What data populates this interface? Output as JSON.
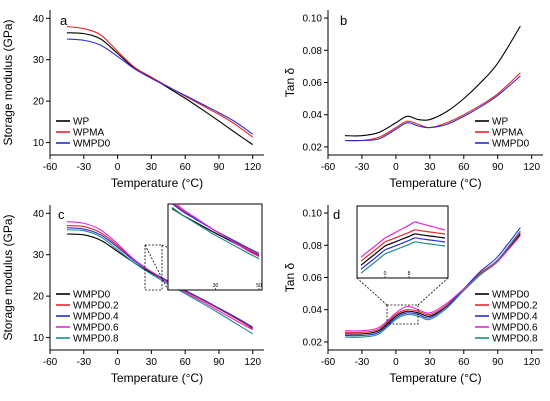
{
  "chart_data": [
    {
      "panel": "a",
      "type": "line",
      "xlabel_main": "Temperature (",
      "xlabel_unit": "°C",
      "xlabel_close": ")",
      "ylabel": "Storage modulus (GPa)",
      "xlim": [
        -60,
        130
      ],
      "ylim": [
        7,
        42
      ],
      "xticks": [
        -60,
        -30,
        0,
        30,
        60,
        90,
        120
      ],
      "yticks": [
        10,
        20,
        30,
        40
      ],
      "legend_position": "bottom-left",
      "series": [
        {
          "name": "WP",
          "color": "#000000",
          "x": [
            -45,
            -30,
            -15,
            0,
            15,
            30,
            45,
            60,
            75,
            90,
            105,
            120
          ],
          "y": [
            36.5,
            36.3,
            35.0,
            31.5,
            28.0,
            25.7,
            23.2,
            20.7,
            18.0,
            15.2,
            12.3,
            9.5
          ]
        },
        {
          "name": "WPMA",
          "color": "#e8262b",
          "x": [
            -45,
            -30,
            -15,
            0,
            15,
            30,
            45,
            60,
            75,
            90,
            105,
            120
          ],
          "y": [
            38.0,
            37.5,
            36.0,
            32.0,
            28.2,
            25.8,
            23.5,
            21.2,
            19.0,
            16.8,
            14.3,
            11.3
          ]
        },
        {
          "name": "WMPD0",
          "color": "#2c2cd6",
          "x": [
            -45,
            -30,
            -15,
            0,
            15,
            30,
            45,
            60,
            75,
            90,
            105,
            120
          ],
          "y": [
            35.0,
            34.7,
            33.5,
            30.8,
            27.8,
            25.5,
            23.4,
            21.4,
            19.3,
            17.2,
            14.9,
            12.0
          ]
        }
      ]
    },
    {
      "panel": "b",
      "type": "line",
      "xlabel_main": "Temperature (",
      "xlabel_unit": "°C",
      "xlabel_close": ")",
      "ylabel": "Tan δ",
      "xlim": [
        -60,
        130
      ],
      "ylim": [
        0.015,
        0.105
      ],
      "xticks": [
        -60,
        -30,
        0,
        30,
        60,
        90,
        120
      ],
      "yticks": [
        0.02,
        0.04,
        0.06,
        0.08,
        0.1
      ],
      "ytick_labels": [
        "0.02",
        "0.04",
        "0.06",
        "0.08",
        "0.10"
      ],
      "legend_position": "bottom-right",
      "series": [
        {
          "name": "WP",
          "color": "#000000",
          "x": [
            -45,
            -30,
            -15,
            0,
            10,
            20,
            30,
            45,
            60,
            75,
            90,
            110
          ],
          "y": [
            0.027,
            0.027,
            0.029,
            0.035,
            0.039,
            0.037,
            0.037,
            0.042,
            0.05,
            0.06,
            0.072,
            0.095
          ]
        },
        {
          "name": "WPMA",
          "color": "#e8262b",
          "x": [
            -45,
            -30,
            -15,
            0,
            10,
            20,
            30,
            45,
            60,
            75,
            90,
            110
          ],
          "y": [
            0.024,
            0.024,
            0.026,
            0.032,
            0.036,
            0.034,
            0.032,
            0.035,
            0.04,
            0.046,
            0.053,
            0.066
          ]
        },
        {
          "name": "WMPD0",
          "color": "#2c2cd6",
          "x": [
            -45,
            -30,
            -15,
            0,
            10,
            20,
            30,
            45,
            60,
            75,
            90,
            110
          ],
          "y": [
            0.024,
            0.024,
            0.025,
            0.031,
            0.035,
            0.033,
            0.032,
            0.034,
            0.039,
            0.045,
            0.052,
            0.064
          ]
        }
      ]
    },
    {
      "panel": "c",
      "type": "line",
      "xlabel_main": "Temperature (",
      "xlabel_unit": "°C",
      "xlabel_close": ")",
      "ylabel": "Storage modulus (GPa)",
      "xlim": [
        -60,
        130
      ],
      "ylim": [
        7,
        42
      ],
      "xticks": [
        -60,
        -30,
        0,
        30,
        60,
        90,
        120
      ],
      "yticks": [
        10,
        20,
        30,
        40
      ],
      "legend_position": "bottom-left",
      "inset": {
        "xlim": [
          10,
          50
        ],
        "xticks": [
          30,
          50
        ],
        "ylim": [
          19,
          29
        ]
      },
      "series": [
        {
          "name": "WMPD0",
          "color": "#000000",
          "x": [
            -45,
            -30,
            -15,
            0,
            15,
            30,
            45,
            60,
            75,
            90,
            105,
            120
          ],
          "y": [
            35.0,
            34.8,
            33.5,
            30.8,
            28.0,
            25.6,
            23.3,
            21.2,
            19.2,
            17.0,
            14.7,
            12.2
          ]
        },
        {
          "name": "WMPD0.2",
          "color": "#e8262b",
          "x": [
            -45,
            -30,
            -15,
            0,
            15,
            30,
            45,
            60,
            75,
            90,
            105,
            120
          ],
          "y": [
            37.0,
            36.8,
            35.3,
            32.2,
            28.6,
            25.9,
            23.4,
            21.2,
            19.1,
            16.9,
            14.6,
            12.3
          ]
        },
        {
          "name": "WMPD0.4",
          "color": "#2c2cd6",
          "x": [
            -45,
            -30,
            -15,
            0,
            15,
            30,
            45,
            60,
            75,
            90,
            105,
            120
          ],
          "y": [
            36.5,
            36.2,
            34.8,
            31.8,
            28.5,
            25.9,
            23.6,
            21.4,
            19.3,
            17.1,
            14.9,
            12.5
          ]
        },
        {
          "name": "WMPD0.6",
          "color": "#e02ad8",
          "x": [
            -45,
            -30,
            -15,
            0,
            15,
            30,
            45,
            60,
            75,
            90,
            105,
            120
          ],
          "y": [
            38.0,
            37.6,
            36.0,
            32.6,
            28.8,
            25.9,
            23.2,
            20.9,
            18.7,
            16.4,
            14.1,
            11.9
          ]
        },
        {
          "name": "WMPD0.8",
          "color": "#1f8f8a",
          "x": [
            -45,
            -30,
            -15,
            0,
            15,
            30,
            45,
            60,
            75,
            90,
            105,
            120
          ],
          "y": [
            36.0,
            35.8,
            34.3,
            31.2,
            28.0,
            25.3,
            22.9,
            20.6,
            18.3,
            15.9,
            13.4,
            10.9
          ]
        }
      ]
    },
    {
      "panel": "d",
      "type": "line",
      "xlabel_main": "Temperature (",
      "xlabel_unit": "°C",
      "xlabel_close": ")",
      "ylabel": "Tan δ",
      "xlim": [
        -60,
        130
      ],
      "ylim": [
        0.015,
        0.105
      ],
      "xticks": [
        -60,
        -30,
        0,
        30,
        60,
        90,
        120
      ],
      "yticks": [
        0.02,
        0.04,
        0.06,
        0.08,
        0.1
      ],
      "ytick_labels": [
        "0.02",
        "0.04",
        "0.06",
        "0.08",
        "0.10"
      ],
      "legend_position": "bottom-right",
      "inset": {
        "xlim": [
          -8,
          20
        ],
        "xticks": [
          0,
          8
        ],
        "ylim": [
          0.03,
          0.045
        ]
      },
      "series": [
        {
          "name": "WMPD0",
          "color": "#000000",
          "x": [
            -45,
            -30,
            -15,
            0,
            10,
            20,
            30,
            45,
            60,
            75,
            90,
            110
          ],
          "y": [
            0.025,
            0.025,
            0.027,
            0.036,
            0.039,
            0.038,
            0.036,
            0.042,
            0.052,
            0.062,
            0.07,
            0.087
          ]
        },
        {
          "name": "WMPD0.2",
          "color": "#e8262b",
          "x": [
            -45,
            -30,
            -15,
            0,
            10,
            20,
            30,
            45,
            60,
            75,
            90,
            110
          ],
          "y": [
            0.026,
            0.026,
            0.028,
            0.037,
            0.04,
            0.039,
            0.037,
            0.043,
            0.053,
            0.063,
            0.071,
            0.088
          ]
        },
        {
          "name": "WMPD0.4",
          "color": "#2c2cd6",
          "x": [
            -45,
            -30,
            -15,
            0,
            10,
            20,
            30,
            45,
            60,
            75,
            90,
            110
          ],
          "y": [
            0.024,
            0.024,
            0.026,
            0.035,
            0.038,
            0.037,
            0.035,
            0.042,
            0.053,
            0.064,
            0.073,
            0.091
          ]
        },
        {
          "name": "WMPD0.6",
          "color": "#e02ad8",
          "x": [
            -45,
            -30,
            -15,
            0,
            10,
            20,
            30,
            45,
            60,
            75,
            90,
            110
          ],
          "y": [
            0.027,
            0.027,
            0.029,
            0.038,
            0.042,
            0.04,
            0.038,
            0.044,
            0.053,
            0.062,
            0.07,
            0.086
          ]
        },
        {
          "name": "WMPD0.8",
          "color": "#1f8f8a",
          "x": [
            -45,
            -30,
            -15,
            0,
            10,
            20,
            30,
            45,
            60,
            75,
            90,
            110
          ],
          "y": [
            0.023,
            0.023,
            0.025,
            0.034,
            0.037,
            0.036,
            0.034,
            0.041,
            0.052,
            0.062,
            0.071,
            0.089
          ]
        }
      ]
    }
  ]
}
